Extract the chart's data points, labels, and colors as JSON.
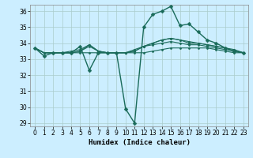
{
  "xlabel": "Humidex (Indice chaleur)",
  "bg_color": "#cceeff",
  "grid_color": "#aacccc",
  "line_color": "#1a6b5a",
  "xlim": [
    -0.5,
    23.5
  ],
  "ylim": [
    28.8,
    36.4
  ],
  "yticks": [
    29,
    30,
    31,
    32,
    33,
    34,
    35,
    36
  ],
  "xticks": [
    0,
    1,
    2,
    3,
    4,
    5,
    6,
    7,
    8,
    9,
    10,
    11,
    12,
    13,
    14,
    15,
    16,
    17,
    18,
    19,
    20,
    21,
    22,
    23
  ],
  "series": [
    {
      "x": [
        0,
        1,
        2,
        3,
        4,
        5,
        6,
        7,
        8,
        9,
        10,
        11,
        12,
        13,
        14,
        15,
        16,
        17,
        18,
        19,
        20,
        21,
        22,
        23
      ],
      "y": [
        33.7,
        33.2,
        33.4,
        33.4,
        33.4,
        33.8,
        32.3,
        33.4,
        33.4,
        33.4,
        29.9,
        29.0,
        35.0,
        35.8,
        36.0,
        36.3,
        35.1,
        35.2,
        34.7,
        34.2,
        34.0,
        33.7,
        33.5,
        33.4
      ],
      "marker": "D",
      "markersize": 2.5,
      "linewidth": 1.0,
      "zorder": 4
    },
    {
      "x": [
        0,
        1,
        2,
        3,
        4,
        5,
        6,
        7,
        8,
        9,
        10,
        11,
        12,
        13,
        14,
        15,
        16,
        17,
        18,
        19,
        20,
        21,
        22,
        23
      ],
      "y": [
        33.7,
        33.4,
        33.4,
        33.4,
        33.4,
        33.4,
        33.4,
        33.4,
        33.4,
        33.4,
        33.4,
        33.4,
        33.4,
        33.5,
        33.6,
        33.7,
        33.7,
        33.7,
        33.7,
        33.7,
        33.6,
        33.5,
        33.4,
        33.4
      ],
      "marker": "D",
      "markersize": 1.5,
      "linewidth": 0.8,
      "zorder": 3
    },
    {
      "x": [
        0,
        1,
        2,
        3,
        4,
        5,
        6,
        7,
        8,
        9,
        10,
        11,
        12,
        13,
        14,
        15,
        16,
        17,
        18,
        19,
        20,
        21,
        22,
        23
      ],
      "y": [
        33.7,
        33.4,
        33.4,
        33.4,
        33.4,
        33.5,
        33.8,
        33.5,
        33.4,
        33.4,
        33.4,
        33.6,
        33.8,
        33.9,
        34.0,
        34.1,
        34.0,
        33.9,
        33.9,
        33.8,
        33.7,
        33.6,
        33.5,
        33.4
      ],
      "marker": "D",
      "markersize": 1.5,
      "linewidth": 0.8,
      "zorder": 3
    },
    {
      "x": [
        0,
        1,
        2,
        3,
        4,
        5,
        6,
        7,
        8,
        9,
        10,
        11,
        12,
        13,
        14,
        15,
        16,
        17,
        18,
        19,
        20,
        21,
        22,
        23
      ],
      "y": [
        33.7,
        33.4,
        33.4,
        33.4,
        33.4,
        33.5,
        33.9,
        33.5,
        33.4,
        33.4,
        33.4,
        33.5,
        33.8,
        34.0,
        34.2,
        34.3,
        34.2,
        34.0,
        34.0,
        33.9,
        33.8,
        33.7,
        33.5,
        33.4
      ],
      "marker": "D",
      "markersize": 1.5,
      "linewidth": 0.8,
      "zorder": 3
    },
    {
      "x": [
        0,
        1,
        2,
        3,
        4,
        5,
        6,
        7,
        8,
        9,
        10,
        11,
        12,
        13,
        14,
        15,
        16,
        17,
        18,
        19,
        20,
        21,
        22,
        23
      ],
      "y": [
        33.7,
        33.4,
        33.4,
        33.4,
        33.5,
        33.6,
        33.9,
        33.5,
        33.4,
        33.4,
        33.4,
        33.5,
        33.8,
        34.0,
        34.2,
        34.3,
        34.2,
        34.1,
        34.0,
        33.9,
        33.8,
        33.7,
        33.6,
        33.4
      ],
      "marker": "D",
      "markersize": 1.5,
      "linewidth": 0.8,
      "zorder": 3
    }
  ]
}
